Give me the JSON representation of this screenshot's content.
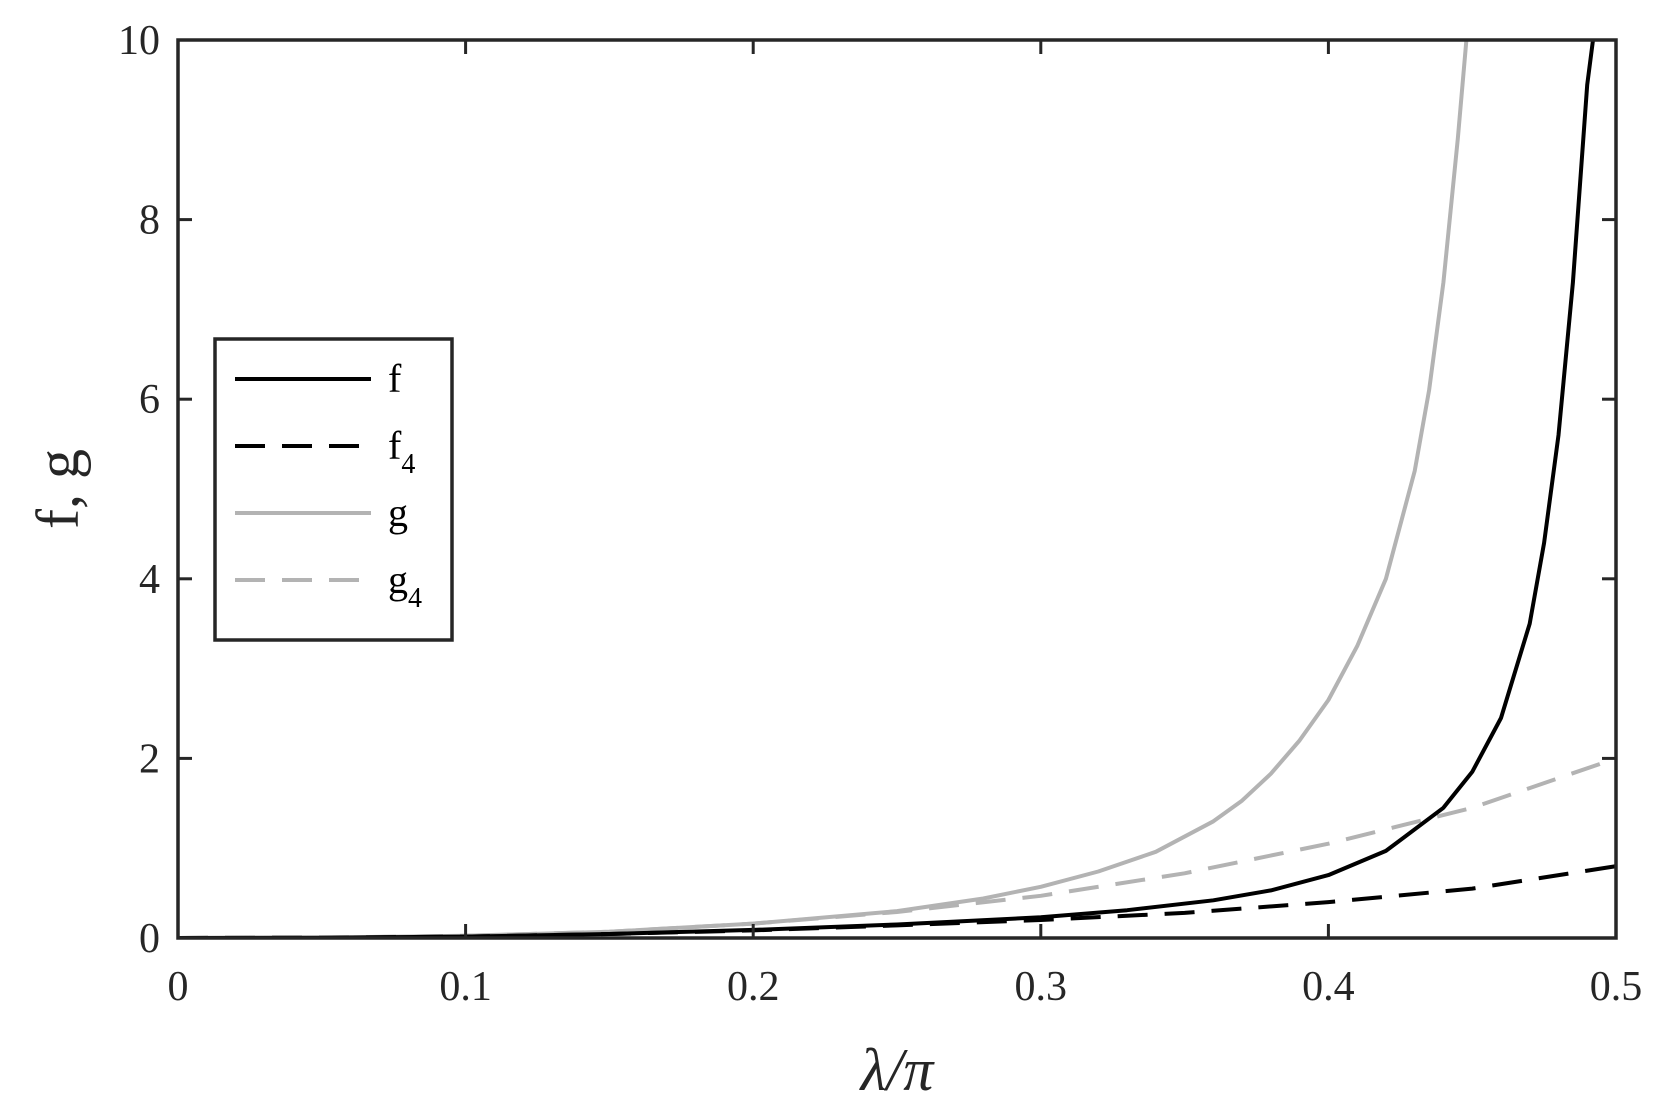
{
  "chart_data": {
    "type": "line",
    "title": "",
    "xlabel": "λ/π",
    "ylabel": "f, g",
    "xlim": [
      0,
      0.5
    ],
    "ylim": [
      0,
      10
    ],
    "xticks": [
      "0",
      "0.1",
      "0.2",
      "0.3",
      "0.4",
      "0.5"
    ],
    "yticks": [
      "0",
      "2",
      "4",
      "6",
      "8",
      "10"
    ],
    "grid": false,
    "legend_position": "center-left",
    "series": [
      {
        "name": "f",
        "legend_main": "f",
        "legend_sub": "",
        "style": "solid",
        "color": "#000000",
        "x": [
          0,
          0.05,
          0.1,
          0.15,
          0.2,
          0.25,
          0.3,
          0.33,
          0.36,
          0.38,
          0.4,
          0.42,
          0.44,
          0.45,
          0.46,
          0.47,
          0.475,
          0.48,
          0.485,
          0.49,
          0.492
        ],
        "y": [
          0,
          0.003,
          0.016,
          0.045,
          0.09,
          0.15,
          0.23,
          0.31,
          0.42,
          0.53,
          0.7,
          0.97,
          1.45,
          1.85,
          2.45,
          3.5,
          4.4,
          5.6,
          7.3,
          9.5,
          10
        ]
      },
      {
        "name": "f4",
        "legend_main": "f",
        "legend_sub": "4",
        "style": "dashed",
        "color": "#000000",
        "x": [
          0,
          0.05,
          0.1,
          0.15,
          0.2,
          0.25,
          0.3,
          0.35,
          0.4,
          0.45,
          0.5
        ],
        "y": [
          0,
          0.003,
          0.016,
          0.045,
          0.085,
          0.14,
          0.2,
          0.28,
          0.4,
          0.55,
          0.8
        ]
      },
      {
        "name": "g",
        "legend_main": "g",
        "legend_sub": "",
        "style": "solid",
        "color": "#b3b3b3",
        "x": [
          0,
          0.05,
          0.1,
          0.15,
          0.2,
          0.25,
          0.28,
          0.3,
          0.32,
          0.34,
          0.36,
          0.37,
          0.38,
          0.39,
          0.4,
          0.41,
          0.42,
          0.43,
          0.435,
          0.44,
          0.445,
          0.448
        ],
        "y": [
          0,
          0.005,
          0.025,
          0.07,
          0.16,
          0.3,
          0.44,
          0.57,
          0.74,
          0.96,
          1.3,
          1.53,
          1.83,
          2.2,
          2.65,
          3.25,
          4.0,
          5.2,
          6.1,
          7.3,
          8.9,
          10
        ]
      },
      {
        "name": "g4",
        "legend_main": "g",
        "legend_sub": "4",
        "style": "dashed",
        "color": "#b3b3b3",
        "x": [
          0,
          0.05,
          0.1,
          0.15,
          0.2,
          0.25,
          0.3,
          0.35,
          0.4,
          0.45,
          0.5
        ],
        "y": [
          0,
          0.005,
          0.025,
          0.07,
          0.16,
          0.29,
          0.47,
          0.72,
          1.05,
          1.45,
          2.0
        ]
      }
    ]
  }
}
